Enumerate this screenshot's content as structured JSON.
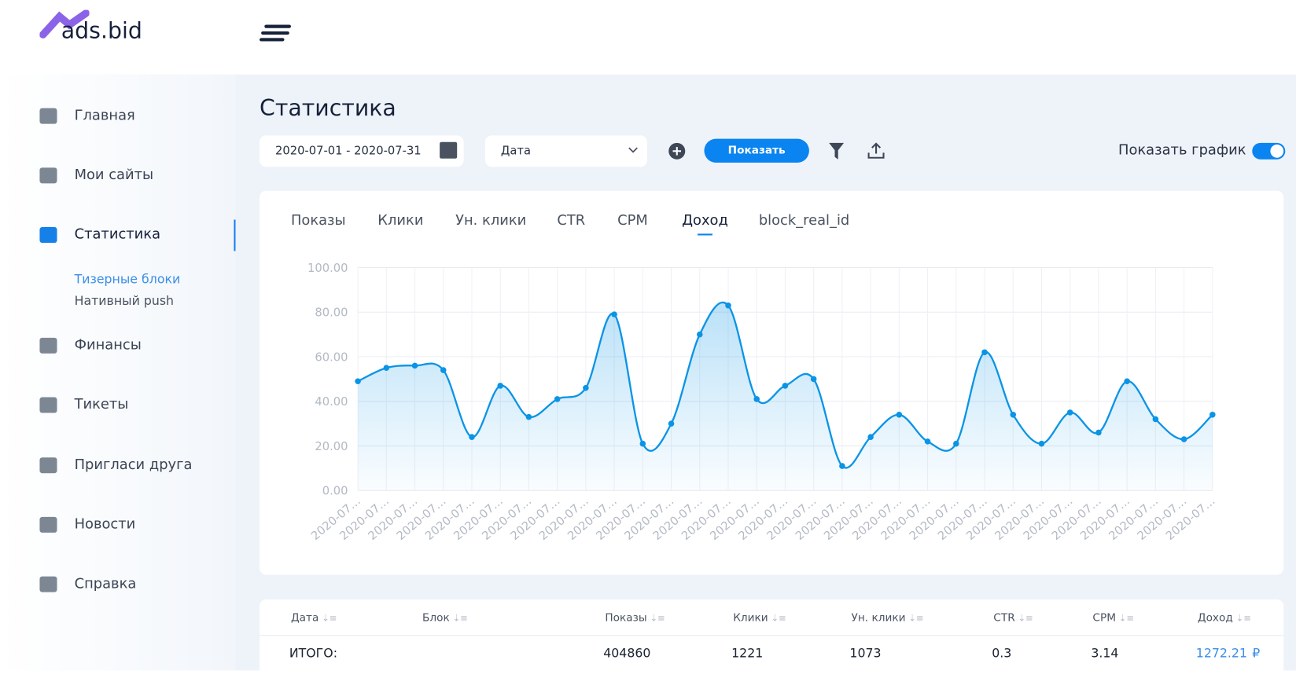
{
  "logo": "ads.bid",
  "sidebar": {
    "items": [
      "Главная",
      "Мои сайты",
      "Статистика",
      "Финансы",
      "Тикеты",
      "Пригласи друга",
      "Новости",
      "Справка"
    ],
    "subitems": [
      "Тизерные блоки",
      "Нативный push"
    ]
  },
  "page": {
    "title": "Статистика",
    "date_range": "2020-07-01 - 2020-07-31",
    "group_by": "Дата",
    "show_button": "Показать",
    "toggle_label": "Показать график"
  },
  "tabs": [
    "Показы",
    "Клики",
    "Ун. клики",
    "CTR",
    "CPM",
    "Доход",
    "block_real_id"
  ],
  "chart_data": {
    "type": "line",
    "color": "#0a94e6",
    "grid": true,
    "categories": [
      "2020-07…",
      "2020-07…",
      "2020-07…",
      "2020-07…",
      "2020-07…",
      "2020-07…",
      "2020-07…",
      "2020-07…",
      "2020-07…",
      "2020-07…",
      "2020-07…",
      "2020-07…",
      "2020-07…",
      "2020-07…",
      "2020-07…",
      "2020-07…",
      "2020-07…",
      "2020-07…",
      "2020-07…",
      "2020-07…",
      "2020-07…",
      "2020-07…",
      "2020-07…",
      "2020-07…",
      "2020-07…",
      "2020-07…",
      "2020-07…",
      "2020-07…",
      "2020-07…",
      "2020-07…",
      "2020-07…"
    ],
    "values": [
      49,
      55,
      56,
      54,
      24,
      47,
      33,
      41,
      46,
      79,
      21,
      30,
      70,
      83,
      41,
      47,
      50,
      11,
      24,
      34,
      22,
      21,
      62,
      34,
      21,
      35,
      26,
      49,
      32,
      23,
      34
    ],
    "ylim": [
      0,
      100
    ],
    "yticks": [
      {
        "value": 0,
        "label": "0.00"
      },
      {
        "value": 20,
        "label": "20.00"
      },
      {
        "value": 40,
        "label": "40.00"
      },
      {
        "value": 60,
        "label": "60.00"
      },
      {
        "value": 80,
        "label": "80.00"
      },
      {
        "value": 100,
        "label": "100.00"
      }
    ]
  },
  "table": {
    "headers": [
      "Дата",
      "Блок",
      "Показы",
      "Клики",
      "Ун. клики",
      "CTR",
      "CPM",
      "Доход"
    ],
    "total": {
      "label": "ИТОГО:",
      "values": [
        404860,
        1221,
        1073,
        0.3,
        3.14,
        1272.21
      ],
      "currency": "₽"
    }
  }
}
